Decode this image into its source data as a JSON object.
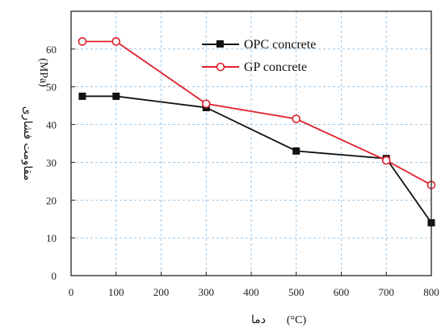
{
  "chart_data": {
    "type": "line",
    "title": "",
    "xlabel": "دما",
    "xlabel_unit": "(°C)",
    "ylabel": "مقاومت فشاری",
    "ylabel_unit": "(MPa)",
    "xlim": [
      0,
      800
    ],
    "ylim": [
      0,
      70
    ],
    "xticks": [
      0,
      100,
      200,
      300,
      400,
      500,
      600,
      700,
      800
    ],
    "yticks": [
      0,
      10,
      20,
      30,
      40,
      50,
      60
    ],
    "grid": true,
    "legend_position": "top-center",
    "series": [
      {
        "name": "OPC concrete",
        "color": "#111111",
        "marker": "filled-square",
        "x": [
          25,
          100,
          300,
          500,
          700,
          800
        ],
        "y": [
          47.5,
          47.5,
          44.5,
          33,
          31,
          14
        ]
      },
      {
        "name": "GP concrete",
        "color": "#e0202a",
        "marker": "open-circle",
        "x": [
          25,
          100,
          300,
          500,
          700,
          800
        ],
        "y": [
          62,
          62,
          45.5,
          41.5,
          30.5,
          24
        ]
      }
    ]
  }
}
